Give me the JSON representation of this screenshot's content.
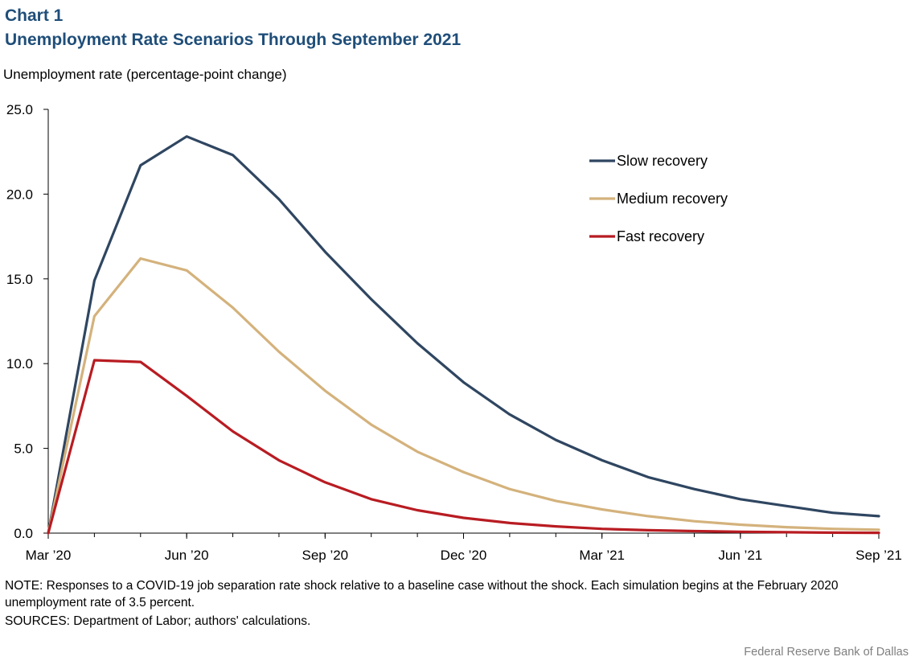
{
  "header": {
    "chart_number": "Chart 1",
    "title": "Unemployment Rate Scenarios Through September 2021"
  },
  "colors": {
    "title": "#1f4e79",
    "slow": "#2f4661",
    "medium": "#d4b27c",
    "fast": "#b81c22",
    "axis": "#000000",
    "credit": "#7f7f7f"
  },
  "chart_data": {
    "type": "line",
    "title": "Unemployment Rate Scenarios Through September 2021",
    "ylabel": "Unemployment  rate (percentage-point change)",
    "xlabel": "",
    "ylim": [
      0,
      25
    ],
    "yticks": [
      "0.0",
      "5.0",
      "10.0",
      "15.0",
      "20.0",
      "25.0"
    ],
    "ytick_values": [
      0,
      5,
      10,
      15,
      20,
      25
    ],
    "x": [
      "Mar '20",
      "Apr '20",
      "May '20",
      "Jun '20",
      "Jul '20",
      "Aug '20",
      "Sep '20",
      "Oct '20",
      "Nov '20",
      "Dec '20",
      "Jan '21",
      "Feb '21",
      "Mar '21",
      "Apr '21",
      "May '21",
      "Jun '21",
      "Jul '21",
      "Aug '21",
      "Sep '21"
    ],
    "xtick_labels": [
      "Mar ’20",
      "Jun ’20",
      "Sep ’20",
      "Dec ’20",
      "Mar ’21",
      "Jun ’21",
      "Sep ’21"
    ],
    "xtick_indices": [
      0,
      3,
      6,
      9,
      12,
      15,
      18
    ],
    "grid": false,
    "legend_position": "top-right",
    "series": [
      {
        "name": "Slow recovery",
        "color_key": "slow",
        "values": [
          0,
          14.9,
          21.7,
          23.4,
          22.3,
          19.7,
          16.6,
          13.8,
          11.2,
          8.9,
          7.0,
          5.5,
          4.3,
          3.3,
          2.6,
          2.0,
          1.6,
          1.2,
          1.0
        ]
      },
      {
        "name": "Medium recovery",
        "color_key": "medium",
        "values": [
          0,
          12.8,
          16.2,
          15.5,
          13.3,
          10.7,
          8.4,
          6.4,
          4.8,
          3.6,
          2.6,
          1.9,
          1.4,
          1.0,
          0.7,
          0.5,
          0.35,
          0.25,
          0.2
        ]
      },
      {
        "name": "Fast recovery",
        "color_key": "fast",
        "values": [
          0,
          10.2,
          10.1,
          8.1,
          6.0,
          4.3,
          3.0,
          2.0,
          1.35,
          0.9,
          0.6,
          0.4,
          0.25,
          0.17,
          0.12,
          0.08,
          0.05,
          0.03,
          0.02
        ]
      }
    ]
  },
  "footer": {
    "note": "NOTE: Responses to a COVID-19 job separation rate shock relative to a baseline case without the shock. Each simulation begins at the February 2020 unemployment  rate of 3.5 percent.",
    "sources": "SOURCES:  Department of Labor; authors' calculations.",
    "credit": "Federal Reserve  Bank of Dallas"
  }
}
